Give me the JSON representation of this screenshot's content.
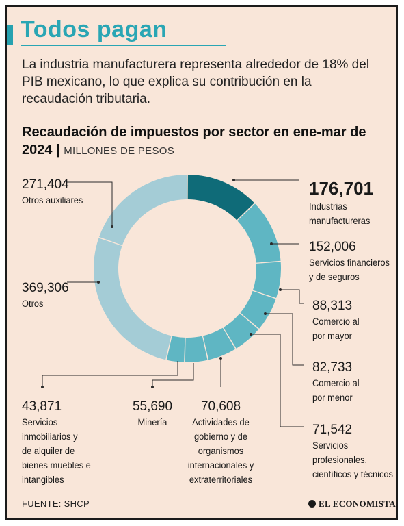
{
  "header": {
    "title": "Todos pagan",
    "subtitle": "La industria manufacturera representa alrededor de 18% del PIB mexicano, lo que explica su contribución en la recaudación tributaria."
  },
  "chart_data": {
    "type": "pie",
    "title": "Recaudación de impuestos por sector en ene-mar de 2024",
    "unit": "MILLONES DE PESOS",
    "series": [
      {
        "label_lines": [
          "Industrias",
          "manufactureras"
        ],
        "value": 176701,
        "value_text": "176,701",
        "color": "#0f6b78"
      },
      {
        "label_lines": [
          "Servicios financieros",
          "y de seguros"
        ],
        "value": 152006,
        "value_text": "152,006",
        "color": "#5fb6c3"
      },
      {
        "label_lines": [
          "Comercio al",
          "por mayor"
        ],
        "value": 88313,
        "value_text": "88,313",
        "color": "#5fb6c3"
      },
      {
        "label_lines": [
          "Comercio al",
          "por menor"
        ],
        "value": 82733,
        "value_text": "82,733",
        "color": "#5fb6c3"
      },
      {
        "label_lines": [
          "Servicios",
          "profesionales,",
          "científicos y técnicos"
        ],
        "value": 71542,
        "value_text": "71,542",
        "color": "#5fb6c3"
      },
      {
        "label_lines": [
          "Actividades de",
          "gobierno y de",
          "organismos",
          "internacionales y",
          "extraterritoriales"
        ],
        "value": 70608,
        "value_text": "70,608",
        "color": "#5fb6c3"
      },
      {
        "label_lines": [
          "Minería"
        ],
        "value": 55690,
        "value_text": "55,690",
        "color": "#5fb6c3"
      },
      {
        "label_lines": [
          "Servicios",
          "inmobiliarios y",
          "de alquiler de",
          "bienes muebles e",
          "intangibles"
        ],
        "value": 43871,
        "value_text": "43,871",
        "color": "#5fb6c3"
      },
      {
        "label_lines": [
          "Otros"
        ],
        "value": 369306,
        "value_text": "369,306",
        "color": "#a4ccd6"
      },
      {
        "label_lines": [
          "Otros auxiliares"
        ],
        "value": 271404,
        "value_text": "271,404",
        "color": "#a4ccd6"
      }
    ]
  },
  "footer": {
    "source": "FUENTE: SHCP",
    "brand": "EL ECONOMISTA"
  }
}
